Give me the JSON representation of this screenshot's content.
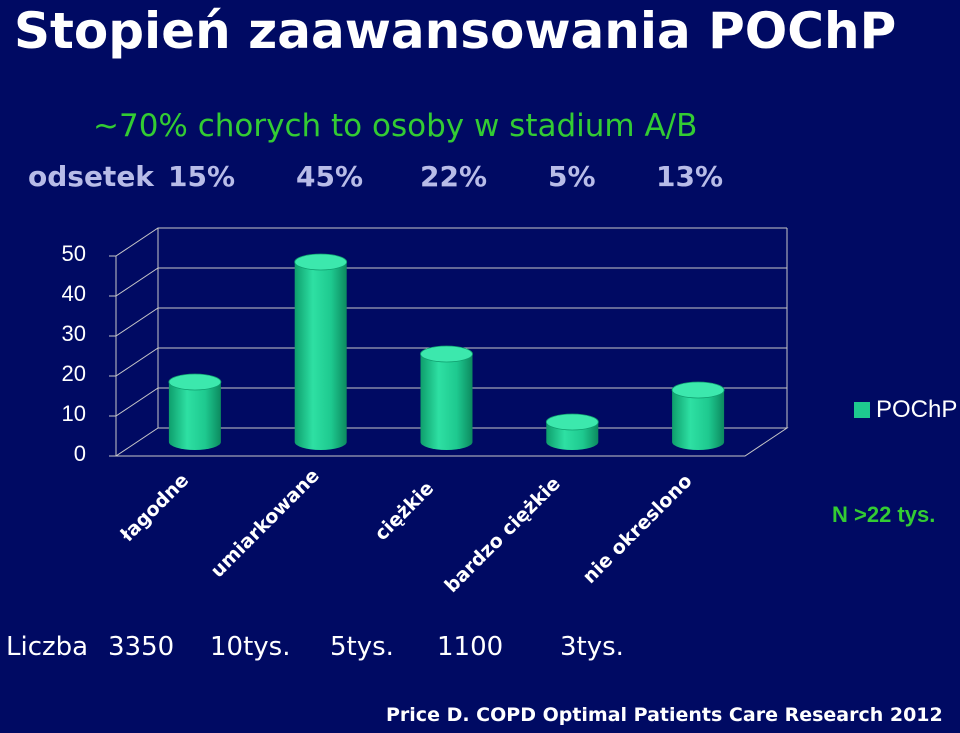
{
  "title": "Stopień zaawansowania   POChP",
  "subtitle": "~70% chorych to osoby w stadium A/B",
  "odsetek": {
    "label": "odsetek",
    "values": [
      "15%",
      "45%",
      "22%",
      "5%",
      "13%"
    ]
  },
  "liczba": {
    "label": "Liczba",
    "values": [
      "3350",
      "10tys.",
      "5tys.",
      "1100",
      "3tys."
    ]
  },
  "n_label": "N >22 tys.",
  "source": "Price  D. COPD Optimal Patients Care Research  2012",
  "colors": {
    "background": "#000a63",
    "bar": "#1ec98f",
    "subtitle": "#33cc33"
  },
  "chart_data": {
    "type": "bar",
    "categories": [
      "łagodne",
      "umiarkowane",
      "ciężkie",
      "bardzo ciężkie",
      "nie okreslono"
    ],
    "series": [
      {
        "name": "POChP",
        "values": [
          15,
          45,
          22,
          5,
          13
        ]
      }
    ],
    "ylim": [
      0,
      50
    ],
    "yticks": [
      "0",
      "10",
      "20",
      "30",
      "40",
      "50"
    ],
    "legend": "right",
    "grid": true
  }
}
